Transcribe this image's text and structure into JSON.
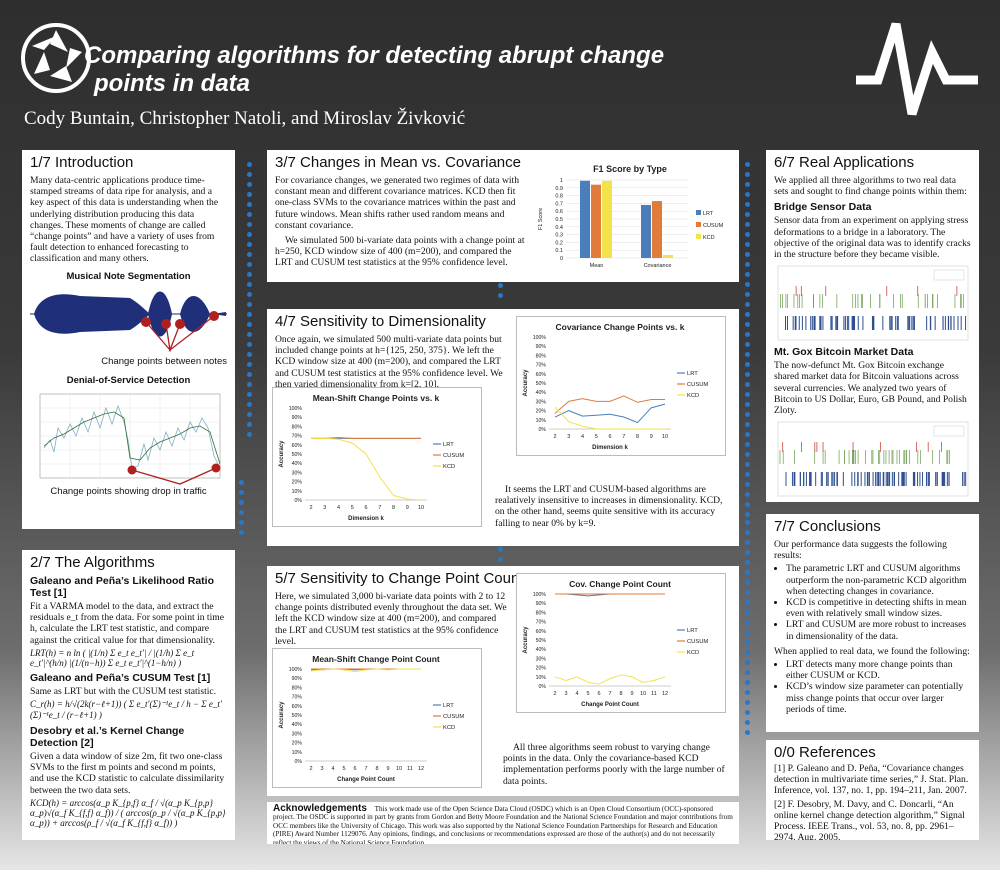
{
  "header": {
    "title": "Comparing algorithms for detecting abrupt change points in data",
    "title_line1": "Comparing algorithms for detecting abrupt change",
    "title_line2": "points in data",
    "authors": "Cody Buntain, Christopher Natoli, and Miroslav Živković"
  },
  "s1": {
    "title": "1/7 Introduction",
    "body": "Many data-centric applications produce time-stamped streams of data ripe for analysis, and a key aspect of this data is understanding when the underlying distribution producing this data changes. These moments of change are called “change points” and have a variety of uses from fault detection to enhanced forecasting to classification and many others.",
    "fig1_title": "Musical Note Segmentation",
    "fig1_caption": "Change points between notes",
    "fig2_title": "Denial-of-Service Detection",
    "fig2_caption": "Change points showing drop in traffic"
  },
  "s2": {
    "title": "2/7 The Algorithms",
    "lrt_title": "Galeano and Peña’s Likelihood Ratio Test [1]",
    "lrt_body": "Fit a VARMA model to the data, and extract the residuals e_t from the data. For some point in time h, calculate the LRT test statistic, and compare against the critical value for that dimensionality.",
    "lrt_eq": "LRT(h) = n ln ( |(1/n) Σ e_t e_t′| / |(1/h) Σ e_t e_t′|^(h/n) |(1/(n−h)) Σ e_t e_t′|^(1−h/n) )",
    "cusum_title": "Galeano and Peña’s CUSUM Test [1]",
    "cusum_body": "Same as LRT but with the CUSUM test statistic.",
    "cusum_eq": "C_r(h) = h/√(2k(r−ℓ+1)) ( Σ e_t′(Σ)⁻¹e_t / h − Σ e_t′(Σ)⁻¹e_t / (r−ℓ+1) )",
    "kcd_title": "Desobry et al.’s Kernel Change Detection [2]",
    "kcd_body": "Given a data window of size 2m, fit two one-class SVMs to the first m points and second m points, and use the KCD statistic to calculate dissimilarity between the two data sets.",
    "kcd_eq": "KCD(h) = arccos(α_p K_{p,f} α_f / √(α_p K_{p,p} α_p)√(α_f K_{f,f} α_f)) / ( arccos(ρ_p / √(α_p K_{p,p} α_p)) + arccos(ρ_f / √(α_f K_{f,f} α_f)) )"
  },
  "s3": {
    "title": "3/7 Changes in Mean vs. Covariance",
    "body1": "For covariance changes, we generated two regimes of data with constant mean and different covariance matrices. KCD then fit one-class SVMs to the covariance matrices within the past and future windows. Mean shifts rather used random means and constant covariance.",
    "body2": "We simulated 500 bi-variate data points with a change point at h=250, KCD window size of 400 (m=200), and compared the LRT and CUSUM test statistics at the 95% confidence level."
  },
  "s4": {
    "title": "4/7 Sensitivity to Dimensionality",
    "body": "Once again, we simulated 500 multi-variate data points but included change points at h={125, 250, 375}. We left the KCD window size at 400 (m=200), and compared the LRT and CUSUM test statistics at the 95% confidence level. We then varied dimensionality from k=[2, 10].",
    "note": "It seems the LRT and CUSUM-based algorithms are realatively insensitive to increases in dimensionality. KCD, on the other hand, seems quite sensitive with its accuracy falling to near 0% by k=9."
  },
  "s5": {
    "title": "5/7 Sensitivity to Change Point Count",
    "body": "Here, we simulated 3,000 bi-variate data points with 2 to 12 change points distributed evenly throughout the data set. We left the KCD window size at 400 (m=200), and compared the LRT and CUSUM test statistics at the 95% confidence level.",
    "note": "All three algorithms seem robust to varying change points in the data. Only the covariance-based KCD implementation performs poorly with the large number of data points."
  },
  "s6": {
    "title": "6/7 Real Applications",
    "body": "We applied all three algorithms to two real data sets and sought to find change points within them:",
    "bridge_title": "Bridge Sensor Data",
    "bridge_body": "Sensor data from an experiment on applying stress deformations to a bridge in a laboratory. The objective of the original data was to identify cracks in the structure before they became visible.",
    "gox_title": "Mt. Gox Bitcoin Market Data",
    "gox_body": "The now-defunct Mt. Gox Bitcoin exchange shared market data for Bitcoin valuations across several currencies. We analyzed two years of Bitcoin to US Dollar, Euro, GB Pound, and Polish Zloty."
  },
  "s7": {
    "title": "7/7 Conclusions",
    "intro": "Our performance data suggests the following results:",
    "bullets": [
      "The parametric LRT and CUSUM algorithms outperform the non-parametric KCD algorithm when detecting changes in covariance.",
      "KCD is competitive in detecting shifts in mean even with relatively small window sizes.",
      "LRT and CUSUM are more robust to increases in dimensionality of the data."
    ],
    "real_intro": "When applied to real data, we found the following:",
    "real_bullets": [
      "LRT detects many more change points than either CUSUM or KCD.",
      "KCD’s window size parameter can potentially miss change points that occur over larger periods of time."
    ]
  },
  "refs": {
    "title": "0/0 References",
    "items": [
      "[1] P. Galeano and D. Peña, “Covariance changes detection in multivariate time series,” J. Stat. Plan. Inference, vol. 137, no. 1, pp. 194–211, Jan. 2007.",
      "[2] F. Desobry, M. Davy, and C. Doncarli, “An online kernel change detection algorithm,” Signal Process. IEEE Trans., vol. 53, no. 8, pp. 2961–2974, Aug. 2005."
    ]
  },
  "ack": {
    "title": "Acknowledgements",
    "body": "This work made use of the Open Science Data Cloud (OSDC) which is an Open Cloud Consortium (OCC)-sponsored project. The OSDC is supported in part by grants from Gordon and Betty Moore Foundation and the National Science Foundation and major contributions from OCC members like the University of Chicago. This work was also supported by the National Science Foundation Partnerships for Research and Education (PIRE) Award Number 1129076. Any opinions, findings, and conclusions or recommendations expressed are those of the author(s) and do not necessarily reflect the views of the National Science Foundation."
  },
  "colors": {
    "lrt": "#4a7ebb",
    "cusum": "#e07b39",
    "kcd": "#f2e34b",
    "dots": "#2a78c2"
  },
  "chart_data": [
    {
      "type": "bar",
      "title": "F1 Score by Type",
      "categories": [
        "Mean",
        "Covariance"
      ],
      "ylabel": "F1 Score",
      "ylim": [
        0,
        1
      ],
      "yticks": [
        "0",
        "0.1",
        "0.2",
        "0.3",
        "0.4",
        "0.5",
        "0.6",
        "0.7",
        "0.8",
        "0.9",
        "1"
      ],
      "series": [
        {
          "name": "LRT",
          "values": [
            0.99,
            0.68
          ]
        },
        {
          "name": "CUSUM",
          "values": [
            0.94,
            0.73
          ]
        },
        {
          "name": "KCD",
          "values": [
            0.99,
            0.04
          ]
        }
      ]
    },
    {
      "type": "line",
      "title": "Covariance Change Points vs. k",
      "xlabel": "Dimension k",
      "ylabel": "Accuracy",
      "x": [
        "2",
        "3",
        "4",
        "5",
        "6",
        "7",
        "8",
        "9",
        "10"
      ],
      "ylim": [
        0,
        100
      ],
      "yticks": [
        "0%",
        "10%",
        "20%",
        "30%",
        "40%",
        "50%",
        "60%",
        "70%",
        "80%",
        "90%",
        "100%"
      ],
      "series": [
        {
          "name": "LRT",
          "values": [
            13,
            20,
            14,
            15,
            16,
            13,
            7,
            23,
            27
          ]
        },
        {
          "name": "CUSUM",
          "values": [
            17,
            30,
            33,
            30,
            30,
            36,
            29,
            32,
            32
          ]
        },
        {
          "name": "KCD",
          "values": [
            24,
            8,
            3,
            0,
            0,
            0,
            0,
            0,
            0
          ]
        }
      ]
    },
    {
      "type": "line",
      "title": "Mean-Shift Change Points vs. k",
      "xlabel": "Dimension k",
      "ylabel": "Accuracy",
      "x": [
        "2",
        "3",
        "4",
        "5",
        "6",
        "7",
        "8",
        "9",
        "10"
      ],
      "ylim": [
        0,
        100
      ],
      "yticks": [
        "0%",
        "10%",
        "20%",
        "30%",
        "40%",
        "50%",
        "60%",
        "70%",
        "80%",
        "90%",
        "100%"
      ],
      "series": [
        {
          "name": "LRT",
          "values": [
            67,
            67,
            67,
            67,
            67,
            67,
            67,
            67,
            67
          ]
        },
        {
          "name": "CUSUM",
          "values": [
            67,
            67,
            68,
            67,
            67,
            67,
            67,
            67,
            67
          ]
        },
        {
          "name": "KCD",
          "values": [
            67,
            67,
            66,
            62,
            50,
            25,
            5,
            1,
            0
          ]
        }
      ]
    },
    {
      "type": "line",
      "title": "Cov. Change Point Count",
      "xlabel": "Change Point Count",
      "ylabel": "Accuracy",
      "x": [
        "2",
        "3",
        "4",
        "5",
        "6",
        "7",
        "8",
        "9",
        "10",
        "11",
        "12"
      ],
      "ylim": [
        0,
        100
      ],
      "yticks": [
        "0%",
        "10%",
        "20%",
        "30%",
        "40%",
        "50%",
        "60%",
        "70%",
        "80%",
        "90%",
        "100%"
      ],
      "series": [
        {
          "name": "LRT",
          "values": [
            100,
            100,
            99,
            98,
            99,
            100,
            100,
            100,
            100,
            100,
            100
          ]
        },
        {
          "name": "CUSUM",
          "values": [
            100,
            100,
            100,
            100,
            100,
            100,
            100,
            100,
            100,
            100,
            100
          ]
        },
        {
          "name": "KCD",
          "values": [
            10,
            6,
            10,
            4,
            2,
            8,
            12,
            10,
            4,
            6,
            10
          ]
        }
      ]
    },
    {
      "type": "line",
      "title": "Mean-Shift Change Point Count",
      "xlabel": "Change Point Count",
      "ylabel": "Accuracy",
      "x": [
        "2",
        "3",
        "4",
        "5",
        "6",
        "7",
        "8",
        "9",
        "10",
        "11",
        "12"
      ],
      "ylim": [
        0,
        100
      ],
      "yticks": [
        "0%",
        "10%",
        "20%",
        "30%",
        "40%",
        "50%",
        "60%",
        "70%",
        "80%",
        "90%",
        "100%"
      ],
      "series": [
        {
          "name": "LRT",
          "values": [
            99,
            99,
            100,
            100,
            99,
            100,
            100,
            100,
            100,
            100,
            100
          ]
        },
        {
          "name": "CUSUM",
          "values": [
            100,
            100,
            100,
            100,
            100,
            100,
            100,
            100,
            100,
            100,
            100
          ]
        },
        {
          "name": "KCD",
          "values": [
            98,
            99,
            100,
            99,
            97,
            99,
            100,
            99,
            100,
            100,
            100
          ]
        }
      ]
    }
  ]
}
